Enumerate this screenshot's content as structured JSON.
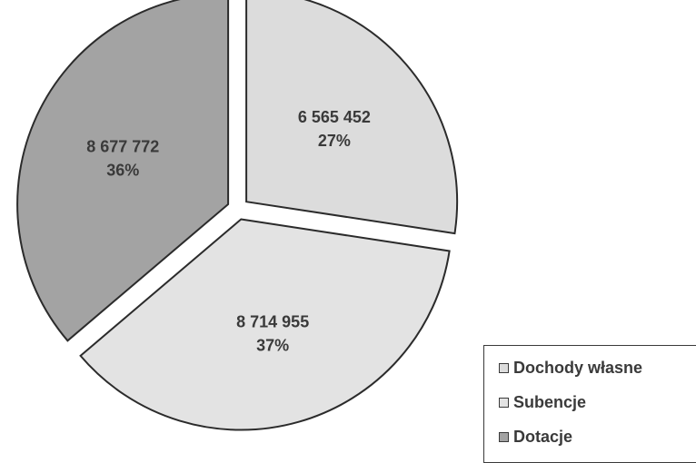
{
  "chart_data": {
    "type": "pie",
    "title": "",
    "start_angle_deg": 0,
    "direction": "clockwise",
    "exploded": true,
    "legend_position": "bottom-right",
    "slices": [
      {
        "label": "Dochody własne",
        "value": 6565452,
        "value_text": "6 565 452",
        "percent_text": "27%",
        "color": "#dcdcdc"
      },
      {
        "label": "Subencje",
        "value": 8714955,
        "value_text": "8 714 955",
        "percent_text": "37%",
        "color": "#e3e3e3"
      },
      {
        "label": "Dotacje",
        "value": 8677772,
        "value_text": "8 677 772",
        "percent_text": "36%",
        "color": "#a3a3a3"
      }
    ]
  },
  "legend": {
    "items": [
      {
        "label": "Dochody własne",
        "color": "#dcdcdc"
      },
      {
        "label": "Subencje",
        "color": "#e3e3e3"
      },
      {
        "label": "Dotacje",
        "color": "#a3a3a3"
      }
    ]
  }
}
